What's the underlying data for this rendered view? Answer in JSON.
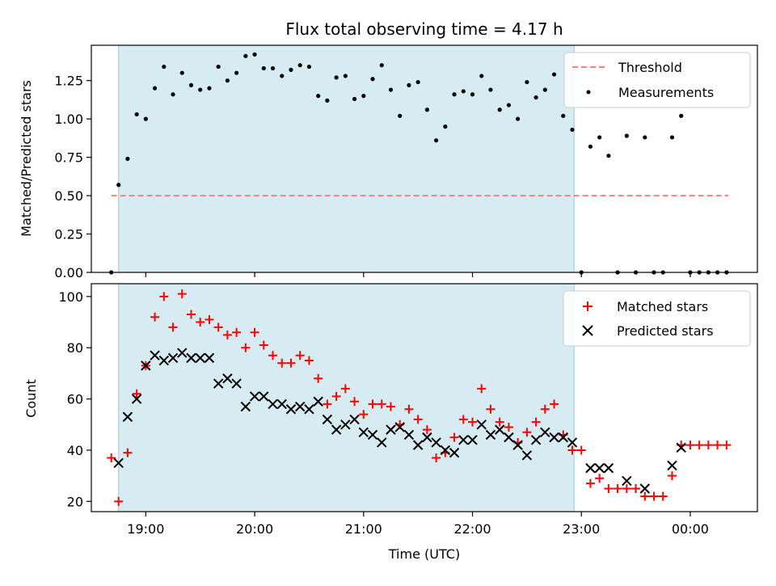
{
  "chart_data": [
    {
      "type": "scatter",
      "title": "Flux total observing time = 4.17 h",
      "xlabel": "",
      "ylabel": "Matched/Predicted stars",
      "x_is_time": true,
      "ylim": [
        0,
        1.48
      ],
      "yticks": [
        0,
        0.25,
        0.5,
        0.75,
        1.0,
        1.25
      ],
      "ytick_labels": [
        "0.00",
        "0.25",
        "0.50",
        "0.75",
        "1.00",
        "1.25"
      ],
      "xlim": [
        "18:30",
        "00:37"
      ],
      "observing_window": [
        "18:45",
        "22:56"
      ],
      "threshold": {
        "name": "Threshold",
        "value": 0.5,
        "x": [
          "18:41",
          "00:21"
        ],
        "color": "#ff7f7f"
      },
      "legend": {
        "placement": "top-right",
        "entries": [
          "Threshold",
          "Measurements"
        ]
      },
      "series": [
        {
          "name": "Measurements",
          "color": "#000000",
          "x": [
            "18:41",
            "18:45",
            "18:50",
            "18:55",
            "19:00",
            "19:05",
            "19:10",
            "19:15",
            "19:20",
            "19:25",
            "19:30",
            "19:35",
            "19:40",
            "19:45",
            "19:50",
            "19:55",
            "20:00",
            "20:05",
            "20:10",
            "20:15",
            "20:20",
            "20:25",
            "20:30",
            "20:35",
            "20:40",
            "20:45",
            "20:50",
            "20:55",
            "21:00",
            "21:05",
            "21:10",
            "21:15",
            "21:20",
            "21:25",
            "21:30",
            "21:35",
            "21:40",
            "21:45",
            "21:50",
            "21:55",
            "22:00",
            "22:05",
            "22:10",
            "22:15",
            "22:20",
            "22:25",
            "22:30",
            "22:35",
            "22:40",
            "22:45",
            "22:50",
            "22:55",
            "23:00",
            "23:05",
            "23:10",
            "23:15",
            "23:20",
            "23:25",
            "23:30",
            "23:35",
            "23:40",
            "23:45",
            "23:50",
            "23:55",
            "00:00",
            "00:05",
            "00:10",
            "00:15",
            "00:20"
          ],
          "y": [
            0.0,
            0.57,
            0.74,
            1.03,
            1.0,
            1.2,
            1.34,
            1.16,
            1.3,
            1.22,
            1.19,
            1.2,
            1.34,
            1.25,
            1.3,
            1.41,
            1.42,
            1.33,
            1.33,
            1.28,
            1.32,
            1.35,
            1.34,
            1.15,
            1.12,
            1.27,
            1.28,
            1.13,
            1.15,
            1.26,
            1.35,
            1.19,
            1.02,
            1.22,
            1.24,
            1.06,
            0.86,
            0.95,
            1.16,
            1.18,
            1.16,
            1.28,
            1.19,
            1.06,
            1.09,
            1.0,
            1.24,
            1.14,
            1.19,
            1.29,
            1.02,
            0.93,
            0.0,
            0.82,
            0.88,
            0.76,
            0.0,
            0.89,
            0.0,
            0.88,
            0.0,
            0.0,
            0.88,
            1.02,
            0.0,
            0.0,
            0.0,
            0.0,
            0.0
          ]
        }
      ]
    },
    {
      "type": "scatter",
      "title": "",
      "xlabel": "Time (UTC)",
      "ylabel": "Count",
      "x_is_time": true,
      "ylim": [
        16,
        105
      ],
      "yticks": [
        20,
        40,
        60,
        80,
        100
      ],
      "ytick_labels": [
        "20",
        "40",
        "60",
        "80",
        "100"
      ],
      "xlim": [
        "18:30",
        "00:37"
      ],
      "xticks": [
        "19:00",
        "20:00",
        "21:00",
        "22:00",
        "23:00",
        "00:00"
      ],
      "xtick_labels": [
        "19:00",
        "20:00",
        "21:00",
        "22:00",
        "23:00",
        "00:00"
      ],
      "observing_window": [
        "18:45",
        "22:56"
      ],
      "legend": {
        "placement": "top-right",
        "entries": [
          "Matched stars",
          "Predicted stars"
        ]
      },
      "series": [
        {
          "name": "Matched stars",
          "marker": "plus",
          "color": "#ff0000",
          "x": [
            "18:41",
            "18:45",
            "18:50",
            "18:55",
            "19:00",
            "19:05",
            "19:10",
            "19:15",
            "19:20",
            "19:25",
            "19:30",
            "19:35",
            "19:40",
            "19:45",
            "19:50",
            "19:55",
            "20:00",
            "20:05",
            "20:10",
            "20:15",
            "20:20",
            "20:25",
            "20:30",
            "20:35",
            "20:40",
            "20:45",
            "20:50",
            "20:55",
            "21:00",
            "21:05",
            "21:10",
            "21:15",
            "21:20",
            "21:25",
            "21:30",
            "21:35",
            "21:40",
            "21:45",
            "21:50",
            "21:55",
            "22:00",
            "22:05",
            "22:10",
            "22:15",
            "22:20",
            "22:25",
            "22:30",
            "22:35",
            "22:40",
            "22:45",
            "22:50",
            "22:55",
            "23:00",
            "23:05",
            "23:10",
            "23:15",
            "23:20",
            "23:25",
            "23:30",
            "23:35",
            "23:40",
            "23:45",
            "23:50",
            "23:55",
            "00:00",
            "00:05",
            "00:10",
            "00:15",
            "00:20"
          ],
          "y": [
            37,
            20,
            39,
            62,
            73,
            92,
            100,
            88,
            101,
            93,
            90,
            91,
            88,
            85,
            86,
            80,
            86,
            81,
            77,
            74,
            74,
            77,
            75,
            68,
            58,
            61,
            64,
            59,
            54,
            58,
            58,
            57,
            50,
            56,
            52,
            48,
            37,
            39,
            45,
            52,
            51,
            64,
            56,
            51,
            49,
            43,
            47,
            51,
            56,
            58,
            46,
            40,
            40,
            27,
            29,
            25,
            25,
            25,
            25,
            22,
            22,
            22,
            30,
            42,
            42,
            42,
            42,
            42,
            42
          ]
        },
        {
          "name": "Predicted stars",
          "marker": "x",
          "color": "#000000",
          "x": [
            "18:45",
            "18:50",
            "18:55",
            "19:00",
            "19:05",
            "19:10",
            "19:15",
            "19:20",
            "19:25",
            "19:30",
            "19:35",
            "19:40",
            "19:45",
            "19:50",
            "19:55",
            "20:00",
            "20:05",
            "20:10",
            "20:15",
            "20:20",
            "20:25",
            "20:30",
            "20:35",
            "20:40",
            "20:45",
            "20:50",
            "20:55",
            "21:00",
            "21:05",
            "21:10",
            "21:15",
            "21:20",
            "21:25",
            "21:30",
            "21:35",
            "21:40",
            "21:45",
            "21:50",
            "21:55",
            "22:00",
            "22:05",
            "22:10",
            "22:15",
            "22:20",
            "22:25",
            "22:30",
            "22:35",
            "22:40",
            "22:45",
            "22:50",
            "22:55",
            "23:05",
            "23:10",
            "23:15",
            "23:25",
            "23:35",
            "23:50",
            "23:55"
          ],
          "y": [
            35,
            53,
            60,
            73,
            77,
            75,
            76,
            78,
            76,
            76,
            76,
            66,
            68,
            66,
            57,
            61,
            61,
            58,
            58,
            56,
            57,
            56,
            59,
            52,
            48,
            50,
            52,
            47,
            46,
            43,
            48,
            49,
            46,
            42,
            45,
            43,
            40,
            39,
            44,
            44,
            50,
            46,
            48,
            45,
            42,
            38,
            44,
            47,
            45,
            45,
            43,
            33,
            33,
            33,
            28,
            25,
            34,
            41
          ]
        }
      ]
    }
  ]
}
